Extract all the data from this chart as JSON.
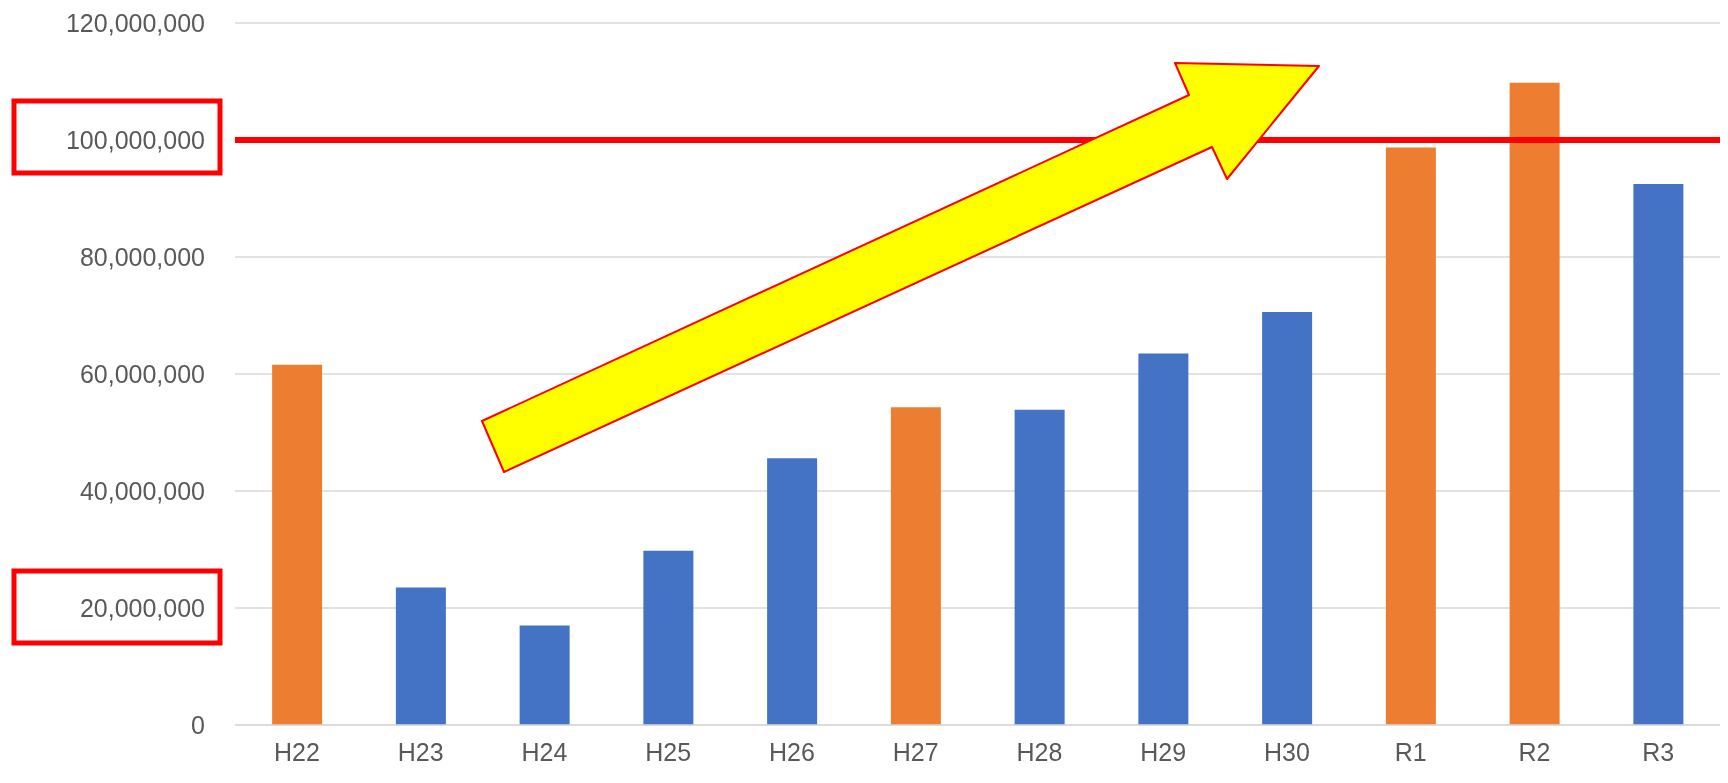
{
  "chart_data": {
    "type": "bar",
    "categories": [
      "H22",
      "H23",
      "H24",
      "H25",
      "H26",
      "H27",
      "H28",
      "H29",
      "H30",
      "R1",
      "R2",
      "R3"
    ],
    "values": [
      61600000,
      23500000,
      17000000,
      29800000,
      45600000,
      54300000,
      53900000,
      63500000,
      70600000,
      98700000,
      109800000,
      92500000
    ],
    "colors": [
      "#ed7d31",
      "#4472c4",
      "#4472c4",
      "#4472c4",
      "#4472c4",
      "#ed7d31",
      "#4472c4",
      "#4472c4",
      "#4472c4",
      "#ed7d31",
      "#ed7d31",
      "#4472c4"
    ],
    "ylim": [
      0,
      120000000
    ],
    "yticks": [
      0,
      {
        "value": 20000000,
        "label": "20,000,000"
      },
      {
        "value": 40000000,
        "label": "40,000,000"
      },
      {
        "value": 60000000,
        "label": "60,000,000"
      },
      {
        "value": 80000000,
        "label": "80,000,000"
      },
      {
        "value": 100000000,
        "label": "100,000,000"
      },
      {
        "value": 120000000,
        "label": "120,000,000"
      }
    ],
    "grid": "y",
    "ref_lines": [
      {
        "axis": "y",
        "value": 100000000,
        "color": "#ff0000"
      }
    ]
  }
}
